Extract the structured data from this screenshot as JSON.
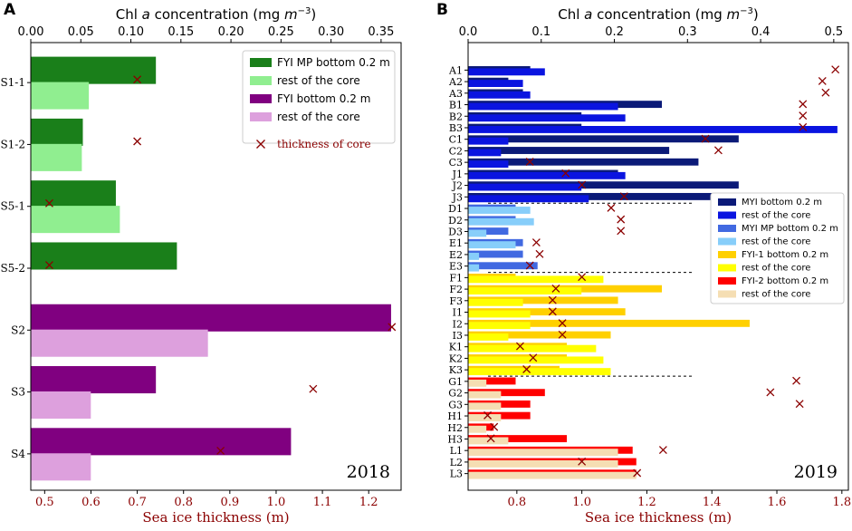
{
  "chart_data": [
    {
      "type": "bar",
      "orientation": "horizontal",
      "panel_label": "A",
      "year": "2018",
      "title": "",
      "top_xlabel": "Chl a concentration (mg m−3)",
      "top_xlabel_parts": {
        "pre": "Chl ",
        "italic": "a",
        "mid": " concentration (mg ",
        "italic2": "m",
        "sup": "−3",
        "post": ")"
      },
      "bottom_xlabel": "Sea ice thickness (m)",
      "top_xlim": [
        0,
        0.37
      ],
      "top_ticks": [
        0.0,
        0.05,
        0.1,
        0.15,
        0.2,
        0.25,
        0.3,
        0.35
      ],
      "top_tick_labels": [
        "0.00",
        "0.05",
        "0.10",
        "0.15",
        "0.20",
        "0.25",
        "0.30",
        "0.35"
      ],
      "bottom_xlim": [
        0.47,
        1.27
      ],
      "bottom_ticks": [
        0.5,
        0.6,
        0.7,
        0.8,
        0.9,
        1.0,
        1.1,
        1.2
      ],
      "bottom_tick_labels": [
        "0.5",
        "0.6",
        "0.7",
        "0.8",
        "0.9",
        "1.0",
        "1.1",
        "1.2"
      ],
      "categories": [
        "S1-1",
        "S1-2",
        "S5-1",
        "S5-2",
        "S2",
        "S3",
        "S4"
      ],
      "series": [
        {
          "name": "FYI MP bottom 0.2 m",
          "color": "#1a7f1a",
          "values": [
            0.125,
            0.052,
            0.085,
            0.146,
            null,
            null,
            null
          ]
        },
        {
          "name": "rest of the core",
          "color": "#90ee90",
          "values": [
            0.058,
            0.051,
            0.089,
            null,
            null,
            null,
            null
          ]
        },
        {
          "name": "FYI bottom 0.2 m",
          "color": "#800080",
          "values": [
            null,
            null,
            null,
            null,
            0.36,
            0.125,
            0.26
          ]
        },
        {
          "name": "rest of the core",
          "color": "#dda0dd",
          "values": [
            null,
            null,
            null,
            null,
            0.177,
            0.06,
            0.06
          ]
        }
      ],
      "thickness_of_core": {
        "name": "thickness of core",
        "color": "#8b0000",
        "values": [
          0.7,
          0.7,
          0.51,
          0.51,
          1.25,
          1.08,
          0.88
        ]
      },
      "legend_position": "top-right"
    },
    {
      "type": "bar",
      "orientation": "horizontal",
      "panel_label": "B",
      "year": "2019",
      "title": "",
      "top_xlabel": "Chl a concentration (mg m−3)",
      "top_xlabel_parts": {
        "pre": "Chl ",
        "italic": "a",
        "mid": " concentration (mg ",
        "italic2": "m",
        "sup": "−3",
        "post": ")"
      },
      "bottom_xlabel": "Sea ice thickness (m)",
      "top_xlim": [
        0,
        0.52
      ],
      "top_ticks": [
        0.0,
        0.1,
        0.2,
        0.3,
        0.4,
        0.5
      ],
      "top_tick_labels": [
        "0.0",
        "0.1",
        "0.2",
        "0.3",
        "0.4",
        "0.5"
      ],
      "bottom_xlim": [
        0.65,
        1.82
      ],
      "bottom_ticks": [
        0.8,
        1.0,
        1.2,
        1.4,
        1.6,
        1.8
      ],
      "bottom_tick_labels": [
        "0.8",
        "1.0",
        "1.2",
        "1.4",
        "1.6",
        "1.8"
      ],
      "categories": [
        "A1",
        "A2",
        "A3",
        "B1",
        "B2",
        "B3",
        "C1",
        "C2",
        "C3",
        "J1",
        "J2",
        "J3",
        "D1",
        "D2",
        "D3",
        "E1",
        "E2",
        "E3",
        "F1",
        "F2",
        "F3",
        "I1",
        "I2",
        "I3",
        "K1",
        "K2",
        "K3",
        "G1",
        "G2",
        "G3",
        "H1",
        "H2",
        "H3",
        "L1",
        "L2",
        "L3"
      ],
      "series": [
        {
          "name": "MYI bottom 0.2 m",
          "color": "#0b1a78",
          "values": [
            0.085,
            0.055,
            0.075,
            0.265,
            0.155,
            0.155,
            0.37,
            0.275,
            0.315,
            0.205,
            0.37,
            0.34,
            null,
            null,
            null,
            null,
            null,
            null,
            null,
            null,
            null,
            null,
            null,
            null,
            null,
            null,
            null,
            null,
            null,
            null,
            null,
            null,
            null,
            null,
            null,
            null
          ]
        },
        {
          "name": "rest of the core",
          "color": "#0a14e0",
          "values": [
            0.105,
            0.075,
            0.085,
            0.205,
            0.215,
            0.505,
            0.055,
            0.045,
            0.055,
            0.215,
            0.155,
            0.165,
            null,
            null,
            null,
            null,
            null,
            null,
            null,
            null,
            null,
            null,
            null,
            null,
            null,
            null,
            null,
            null,
            null,
            null,
            null,
            null,
            null,
            null,
            null,
            null
          ]
        },
        {
          "name": "MYI MP bottom 0.2 m",
          "color": "#4169e1",
          "values": [
            null,
            null,
            null,
            null,
            null,
            null,
            null,
            null,
            null,
            null,
            null,
            null,
            0.065,
            0.065,
            0.055,
            0.075,
            0.075,
            0.095,
            null,
            null,
            null,
            null,
            null,
            null,
            null,
            null,
            null,
            null,
            null,
            null,
            null,
            null,
            null,
            null,
            null,
            null
          ]
        },
        {
          "name": "rest of the core",
          "color": "#87cefa",
          "values": [
            null,
            null,
            null,
            null,
            null,
            null,
            null,
            null,
            null,
            null,
            null,
            null,
            0.085,
            0.09,
            0.025,
            0.065,
            0.015,
            0.015,
            null,
            null,
            null,
            null,
            null,
            null,
            null,
            null,
            null,
            null,
            null,
            null,
            null,
            null,
            null,
            null,
            null,
            null
          ]
        },
        {
          "name": "FYI-1 bottom 0.2 m",
          "color": "#ffd000",
          "values": [
            null,
            null,
            null,
            null,
            null,
            null,
            null,
            null,
            null,
            null,
            null,
            null,
            null,
            null,
            null,
            null,
            null,
            null,
            0.065,
            0.265,
            0.205,
            0.215,
            0.385,
            0.195,
            0.135,
            0.135,
            0.125,
            null,
            null,
            null,
            null,
            null,
            null,
            null,
            null,
            null
          ]
        },
        {
          "name": "rest of the core",
          "color": "#ffff00",
          "values": [
            null,
            null,
            null,
            null,
            null,
            null,
            null,
            null,
            null,
            null,
            null,
            null,
            null,
            null,
            null,
            null,
            null,
            null,
            0.185,
            0.155,
            0.075,
            0.085,
            0.085,
            0.055,
            0.175,
            0.185,
            0.195,
            null,
            null,
            null,
            null,
            null,
            null,
            null,
            null,
            null
          ]
        },
        {
          "name": "FYI-2 bottom 0.2 m",
          "color": "#ff0000",
          "values": [
            null,
            null,
            null,
            null,
            null,
            null,
            null,
            null,
            null,
            null,
            null,
            null,
            null,
            null,
            null,
            null,
            null,
            null,
            null,
            null,
            null,
            null,
            null,
            null,
            null,
            null,
            null,
            0.065,
            0.105,
            0.085,
            0.085,
            0.035,
            0.135,
            0.225,
            0.23,
            0.23
          ]
        },
        {
          "name": "rest of the core",
          "color": "#f5deb3",
          "values": [
            null,
            null,
            null,
            null,
            null,
            null,
            null,
            null,
            null,
            null,
            null,
            null,
            null,
            null,
            null,
            null,
            null,
            null,
            null,
            null,
            null,
            null,
            null,
            null,
            null,
            null,
            null,
            0.025,
            0.045,
            0.045,
            0.045,
            0.025,
            0.055,
            0.205,
            0.205,
            0.23
          ]
        }
      ],
      "thickness_of_core": {
        "name": "thickness of core",
        "color": "#8b0000",
        "values": [
          1.78,
          1.74,
          1.75,
          1.68,
          1.68,
          1.68,
          1.38,
          1.42,
          0.84,
          0.95,
          1.0,
          1.13,
          1.09,
          1.12,
          1.12,
          0.86,
          0.87,
          0.84,
          1.0,
          0.92,
          0.91,
          0.91,
          0.94,
          0.94,
          0.81,
          0.85,
          0.83,
          1.66,
          1.58,
          1.67,
          0.71,
          0.73,
          0.72,
          1.25,
          1.0,
          1.17
        ]
      },
      "group_separators": [
        "J3",
        "E3",
        "K3"
      ],
      "legend_position": "center-right"
    }
  ]
}
